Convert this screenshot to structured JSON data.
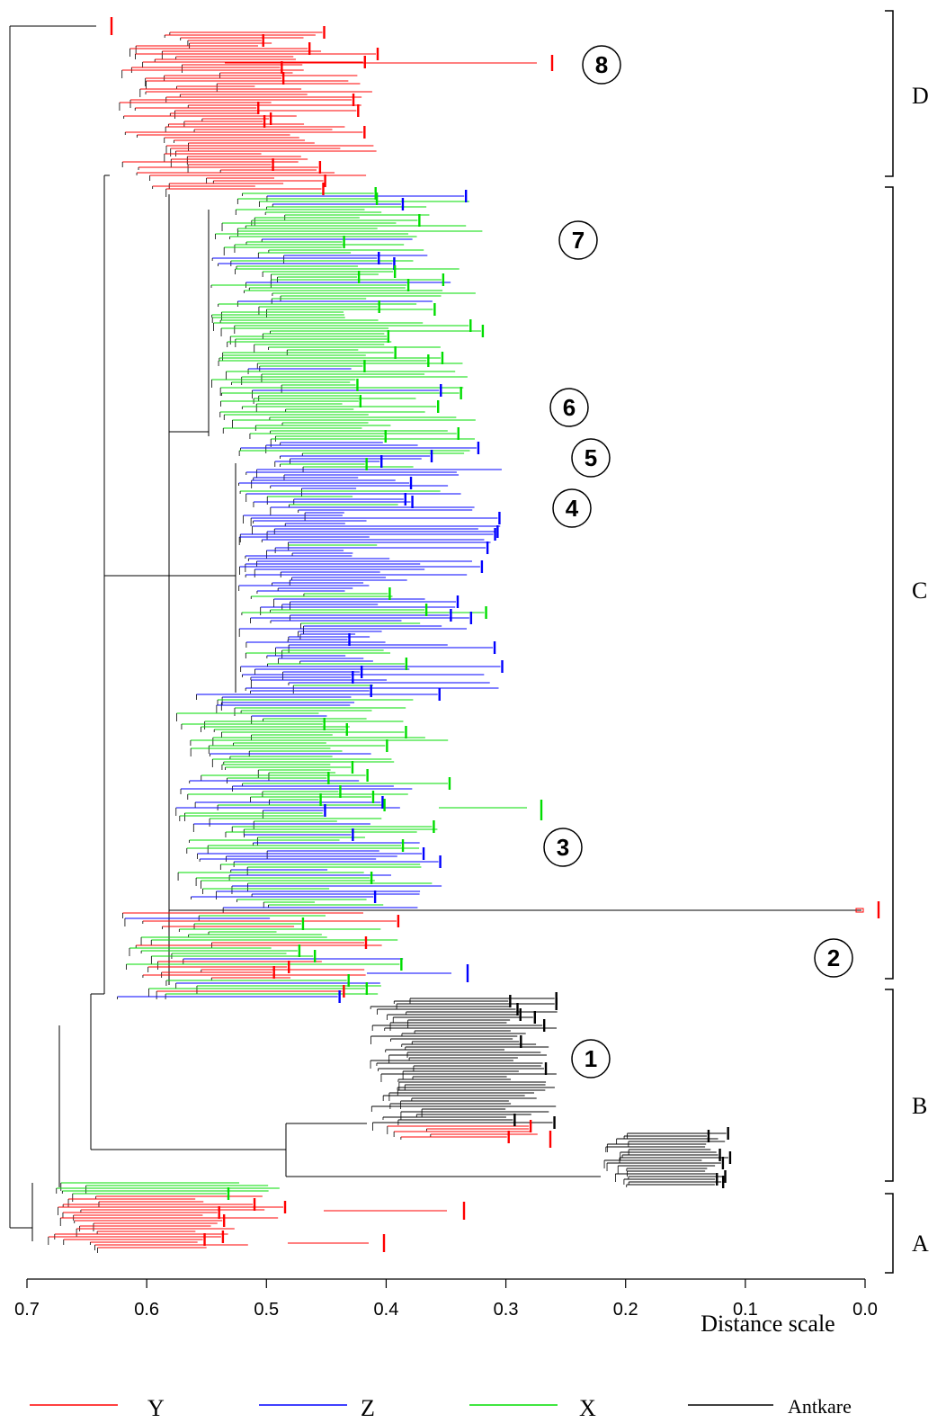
{
  "diagram": {
    "type": "phylogenetic-tree",
    "colors": {
      "Y": "#ff0000",
      "Z": "#0000ff",
      "X": "#00dd00",
      "Antkare": "#000000"
    },
    "axis": {
      "title": "Distance scale",
      "range": [
        0.7,
        0.0
      ],
      "ticks": [
        "0.7",
        "0.6",
        "0.5",
        "0.4",
        "0.3",
        "0.2",
        "0.1",
        "0.0"
      ]
    },
    "clades": [
      {
        "label": "D"
      },
      {
        "label": "C"
      },
      {
        "label": "B"
      },
      {
        "label": "A"
      }
    ],
    "markers": [
      "8",
      "7",
      "6",
      "5",
      "4",
      "3",
      "2",
      "1"
    ],
    "legend": [
      {
        "key": "Y",
        "label": "Y",
        "color": "#ff0000"
      },
      {
        "key": "Z",
        "label": "Z",
        "color": "#0000ff"
      },
      {
        "key": "X",
        "label": "X",
        "color": "#00dd00"
      },
      {
        "key": "Antkare",
        "label": "Antkare",
        "color": "#000000"
      }
    ]
  }
}
